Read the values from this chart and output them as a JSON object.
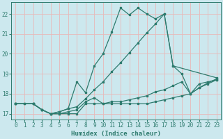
{
  "background_color": "#cce8ee",
  "grid_color": "#e8b8b8",
  "line_color": "#2e7b6e",
  "xlabel": "Humidex (Indice chaleur)",
  "xlim": [
    -0.5,
    23.5
  ],
  "ylim": [
    16.7,
    22.6
  ],
  "yticks": [
    17,
    18,
    19,
    20,
    21,
    22
  ],
  "xticks": [
    0,
    1,
    2,
    3,
    4,
    5,
    6,
    7,
    8,
    9,
    10,
    11,
    12,
    13,
    14,
    15,
    16,
    17,
    18,
    19,
    20,
    21,
    22,
    23
  ],
  "line1_x": [
    0,
    1,
    2,
    3,
    4,
    5,
    6,
    7,
    8,
    9,
    10,
    11,
    12,
    13,
    14,
    15,
    16,
    17,
    18,
    19,
    20,
    21,
    22,
    23
  ],
  "line1_y": [
    17.5,
    17.5,
    17.5,
    17.2,
    17.0,
    17.0,
    17.0,
    17.0,
    17.5,
    17.5,
    17.5,
    17.5,
    17.5,
    17.5,
    17.5,
    17.5,
    17.6,
    17.7,
    17.8,
    17.9,
    18.0,
    18.5,
    18.6,
    18.7
  ],
  "line2_x": [
    0,
    1,
    2,
    3,
    4,
    5,
    6,
    7,
    8,
    9,
    10,
    11,
    12,
    13,
    14,
    15,
    16,
    17,
    18,
    19,
    20,
    21,
    22,
    23
  ],
  "line2_y": [
    17.5,
    17.5,
    17.5,
    17.2,
    17.0,
    17.0,
    17.1,
    17.2,
    17.6,
    17.8,
    17.5,
    17.6,
    17.6,
    17.7,
    17.8,
    17.9,
    18.1,
    18.2,
    18.4,
    18.6,
    18.0,
    18.3,
    18.5,
    18.7
  ],
  "line3_x": [
    0,
    2,
    3,
    4,
    5,
    6,
    7,
    8,
    9,
    10,
    11,
    12,
    13,
    14,
    15,
    16,
    17,
    18,
    23
  ],
  "line3_y": [
    17.5,
    17.5,
    17.2,
    17.0,
    17.1,
    17.25,
    18.6,
    18.05,
    19.4,
    20.0,
    21.1,
    22.3,
    21.95,
    22.3,
    22.0,
    21.75,
    22.0,
    19.4,
    18.8
  ],
  "line4_x": [
    0,
    2,
    3,
    4,
    5,
    6,
    7,
    8,
    9,
    10,
    11,
    12,
    13,
    14,
    15,
    16,
    17,
    18,
    19,
    20,
    21,
    22,
    23
  ],
  "line4_y": [
    17.5,
    17.5,
    17.2,
    17.0,
    17.1,
    17.25,
    17.35,
    17.75,
    18.2,
    18.6,
    19.1,
    19.55,
    20.05,
    20.55,
    21.05,
    21.5,
    22.0,
    19.4,
    19.0,
    18.0,
    18.3,
    18.55,
    18.75
  ]
}
